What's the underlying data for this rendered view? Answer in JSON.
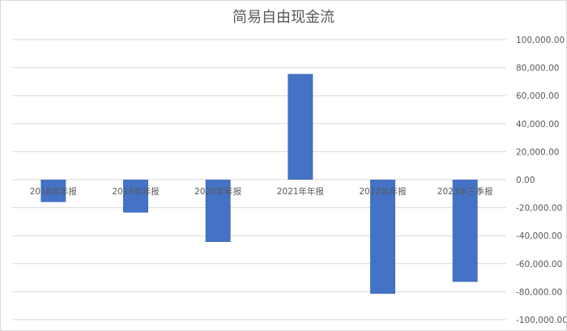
{
  "chart_data": {
    "type": "bar",
    "title": "简易自由现金流",
    "categories": [
      "2018年年报",
      "2019年年报",
      "2020年年报",
      "2021年年报",
      "2022年年报",
      "2023年三季报"
    ],
    "values": [
      -16000,
      -23500,
      -44500,
      75500,
      -81500,
      -73000
    ],
    "ylim": [
      -100000,
      100000
    ],
    "ytick_labels": [
      "100,000.00",
      "80,000.00",
      "60,000.00",
      "40,000.00",
      "20,000.00",
      "0.00",
      "-20,000.00",
      "-40,000.00",
      "-60,000.00",
      "-80,000.00",
      "-100,000.00"
    ],
    "ytick_values": [
      100000,
      80000,
      60000,
      40000,
      20000,
      0,
      -20000,
      -40000,
      -60000,
      -80000,
      -100000
    ],
    "grid": true,
    "legend": "none",
    "bar_color": "#4472c4"
  }
}
